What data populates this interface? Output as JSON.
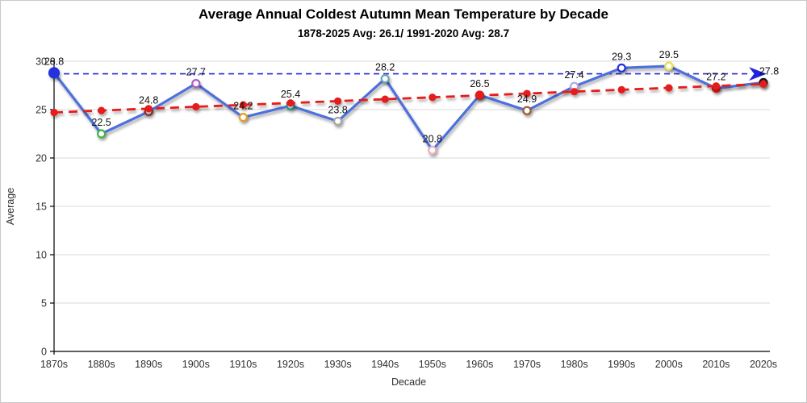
{
  "chart_data": {
    "type": "line",
    "title": "Average Annual Coldest Autumn Mean Temperature by Decade",
    "subtitle": "1878-2025 Avg: 26.1/ 1991-2020 Avg: 28.7",
    "xlabel": "Decade",
    "ylabel": "Average",
    "ylim": [
      0,
      30
    ],
    "yticks": [
      0,
      5,
      10,
      15,
      20,
      25,
      30
    ],
    "grid": "horizontal",
    "legend_position": "none",
    "categories": [
      "1870s",
      "1880s",
      "1890s",
      "1900s",
      "1910s",
      "1920s",
      "1930s",
      "1940s",
      "1950s",
      "1960s",
      "1970s",
      "1980s",
      "1990s",
      "2000s",
      "2010s",
      "2020s"
    ],
    "series": [
      {
        "name": "decade-average",
        "type": "line",
        "color": "#4e6fdc",
        "values": [
          28.8,
          22.5,
          24.8,
          27.7,
          24.2,
          25.4,
          23.8,
          28.2,
          20.8,
          26.5,
          24.9,
          27.4,
          29.3,
          29.5,
          27.2,
          27.8
        ],
        "point_labels": [
          "28.8",
          "22.5",
          "24.8",
          "27.7",
          "24.2",
          "25.4",
          "23.8",
          "28.2",
          "20.8",
          "26.5",
          "24.9",
          "27.4",
          "29.3",
          "29.5",
          "27.2",
          "27.8"
        ],
        "markers": [
          {
            "ring": "#2230dd",
            "fill": "#2230dd",
            "r": 6
          },
          {
            "ring": "#3fb445",
            "fill": "#ffffff"
          },
          {
            "ring": "#9b3030",
            "fill": "#ffffff"
          },
          {
            "ring": "#a95dc9",
            "fill": "#ffffff"
          },
          {
            "ring": "#e89c20",
            "fill": "#ffffff"
          },
          {
            "ring": "#1fa38f",
            "fill": "#ffffff"
          },
          {
            "ring": "#a6a6a6",
            "fill": "#ffffff"
          },
          {
            "ring": "#6aa6b8",
            "fill": "#ffffff"
          },
          {
            "ring": "#e9aebc",
            "fill": "#ffffff"
          },
          {
            "ring": "#e51a1a",
            "fill": "#e51a1a"
          },
          {
            "ring": "#9c5b2e",
            "fill": "#ffffff"
          },
          {
            "ring": "#b3a6e3",
            "fill": "#ffffff"
          },
          {
            "ring": "#2233dd",
            "fill": "#ffffff"
          },
          {
            "ring": "#e6e04e",
            "fill": "#ffffff"
          },
          {
            "ring": "#e51a1a",
            "fill": "#e51a1a"
          },
          {
            "ring": "#151515",
            "fill": "#e31414"
          }
        ]
      },
      {
        "name": "linear-trend",
        "type": "trendline",
        "color": "#e51a1a",
        "dash": true,
        "start": 24.71,
        "end": 27.64
      }
    ],
    "reference_line": {
      "name": "1991-2020-average",
      "value": 28.7,
      "color": "#2222e0",
      "dash": true,
      "arrow": "right"
    }
  }
}
